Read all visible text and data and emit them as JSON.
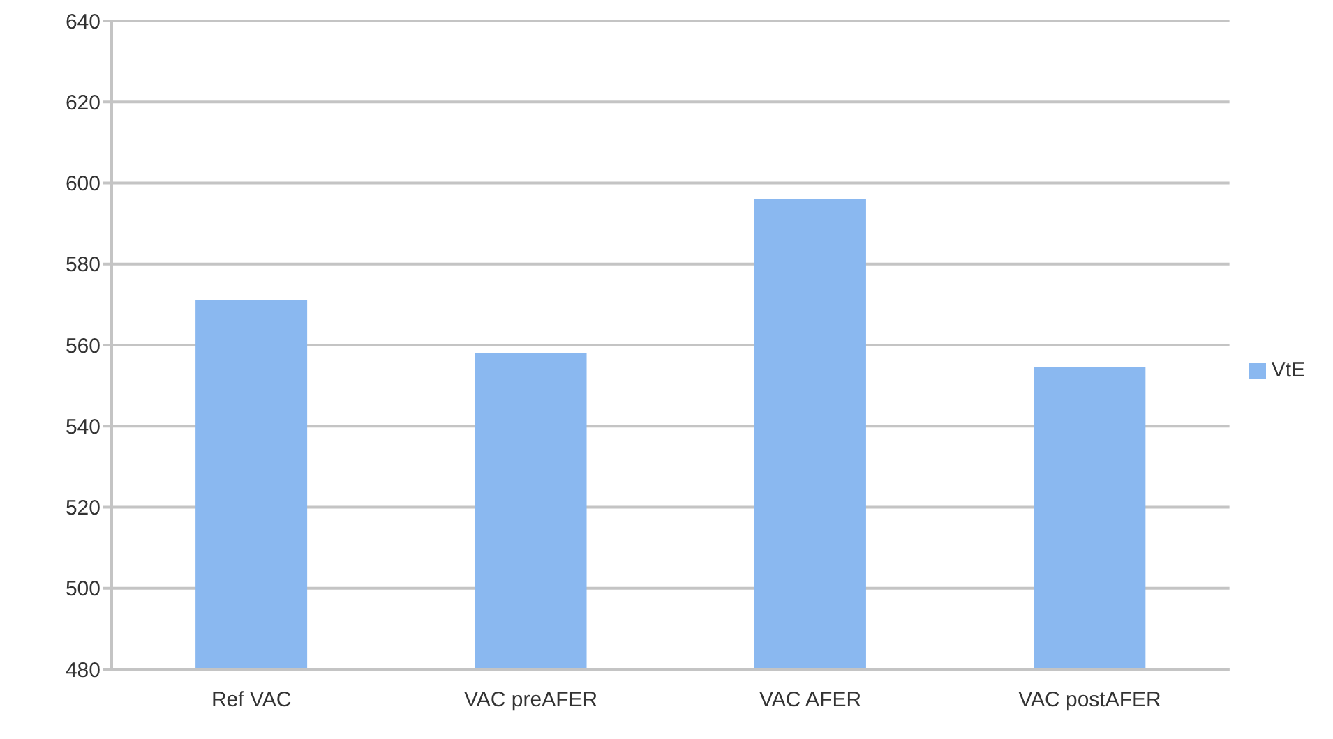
{
  "chart_data": {
    "type": "bar",
    "categories": [
      "Ref VAC",
      "VAC preAFER",
      "VAC AFER",
      "VAC postAFER"
    ],
    "series": [
      {
        "name": "VtE",
        "color": "#8ab8f0",
        "values": [
          571,
          558,
          596,
          554.5
        ]
      }
    ],
    "ylim": [
      480,
      640
    ],
    "yticks": [
      480,
      500,
      520,
      540,
      560,
      580,
      600,
      620,
      640
    ],
    "grid": "y",
    "legend": "right"
  }
}
